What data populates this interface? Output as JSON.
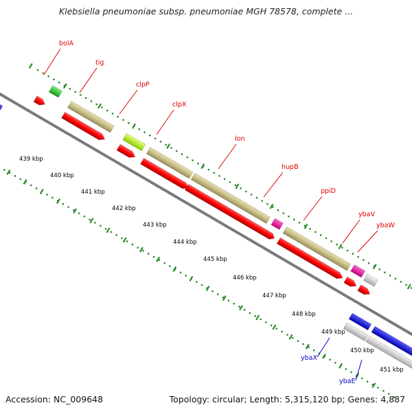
{
  "title": "Klebsiella pneumoniae subsp. pneumoniae MGH 78578, complete ...",
  "footer": {
    "accession": "Accession: NC_009648",
    "stats": "Topology: circular; Length: 5,315,120 bp; Genes: 4,887"
  },
  "colors": {
    "label_forward": "#e00000",
    "label_reverse": "#0000cc",
    "tick": "#2a8a2a",
    "backbone": "#7a7a7a"
  },
  "scale_labels": [
    "439 kbp",
    "440 kbp",
    "441 kbp",
    "442 kbp",
    "443 kbp",
    "444 kbp",
    "445 kbp",
    "446 kbp",
    "447 kbp",
    "448 kbp",
    "449 kbp",
    "450 kbp",
    "451 kbp"
  ],
  "gene_labels": [
    {
      "text": "bolA",
      "strand": "forward"
    },
    {
      "text": "tig",
      "strand": "forward"
    },
    {
      "text": "clpP",
      "strand": "forward"
    },
    {
      "text": "clpX",
      "strand": "forward"
    },
    {
      "text": "lon",
      "strand": "forward"
    },
    {
      "text": "hupB",
      "strand": "forward"
    },
    {
      "text": "ppiD",
      "strand": "forward"
    },
    {
      "text": "ybaV",
      "strand": "forward"
    },
    {
      "text": "ybaW",
      "strand": "forward"
    },
    {
      "text": "ybaX",
      "strand": "reverse"
    },
    {
      "text": "ybaE",
      "strand": "reverse"
    }
  ]
}
